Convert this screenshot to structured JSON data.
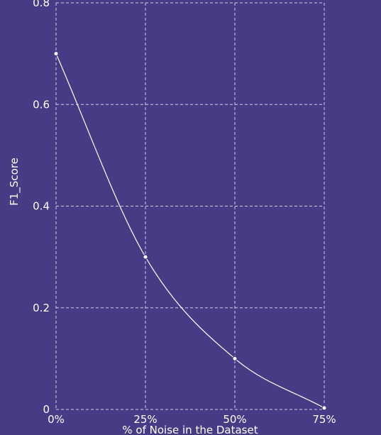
{
  "chart_data": {
    "type": "line",
    "x": [
      "0%",
      "25%",
      "50%",
      "75%"
    ],
    "series": [
      {
        "values": [
          0.7,
          0.3,
          0.1,
          0.003
        ]
      }
    ],
    "xlabel": "% of Noise in the Dataset",
    "ylabel": "F1_Score",
    "ylim": [
      0,
      0.8
    ],
    "yticks": [
      "0",
      "0.2",
      "0.4",
      "0.6",
      "0.8"
    ],
    "grid": true,
    "line_color": "#ffffff",
    "background": "#463c86",
    "smooth": true
  }
}
